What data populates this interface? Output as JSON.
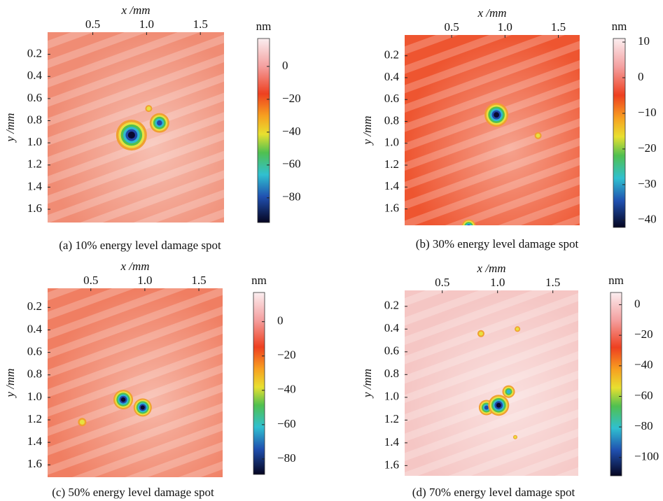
{
  "chart_data": [
    {
      "type": "heatmap",
      "x_label": "x /mm",
      "y_label": "y /mm",
      "colorbar_label": "nm",
      "caption": "(a) 10% energy level damage spot",
      "xlim": [
        0.08,
        1.72
      ],
      "xticks": [
        0.5,
        {
          "value": 1,
          "label": "1.0"
        },
        1.5
      ],
      "ylim": [
        0,
        1.72
      ],
      "yticks": [
        0.2,
        0.4,
        0.6,
        0.8,
        {
          "value": 1,
          "label": "1.0"
        },
        1.2,
        1.4,
        1.6
      ],
      "clim": [
        -95,
        17
      ],
      "cticks": [
        0,
        {
          "value": -20,
          "label": "−20"
        },
        {
          "value": -40,
          "label": "−40"
        },
        {
          "value": -60,
          "label": "−60"
        },
        {
          "value": -80,
          "label": "−80"
        }
      ]
    },
    {
      "type": "heatmap",
      "x_label": "x /mm",
      "y_label": "y /mm",
      "colorbar_label": "nm",
      "caption": "(b) 30% energy level damage spot",
      "xlim": [
        0.06,
        1.7
      ],
      "xticks": [
        0.5,
        {
          "value": 1,
          "label": "1.0"
        },
        1.5
      ],
      "ylim": [
        0.01,
        1.75
      ],
      "yticks": [
        0.2,
        0.4,
        0.6,
        0.8,
        {
          "value": 1,
          "label": "1.0"
        },
        1.2,
        1.4,
        1.6
      ],
      "clim": [
        -42,
        11
      ],
      "cticks": [
        10,
        0,
        {
          "value": -10,
          "label": "−10"
        },
        {
          "value": -20,
          "label": "−20"
        },
        {
          "value": -30,
          "label": "−30"
        },
        {
          "value": -40,
          "label": "−40"
        }
      ]
    },
    {
      "type": "heatmap",
      "x_label": "x /mm",
      "y_label": "y /mm",
      "colorbar_label": "nm",
      "caption": "(c) 50% energy level damage spot",
      "xlim": [
        0.1,
        1.72
      ],
      "xticks": [
        0.5,
        {
          "value": 1,
          "label": "1.0"
        },
        1.5
      ],
      "ylim": [
        0.03,
        1.71
      ],
      "yticks": [
        0.2,
        0.4,
        0.6,
        0.8,
        {
          "value": 1,
          "label": "1.0"
        },
        1.2,
        1.4,
        1.6
      ],
      "clim": [
        -89,
        17
      ],
      "cticks": [
        0,
        {
          "value": -20,
          "label": "−20"
        },
        {
          "value": -40,
          "label": "−40"
        },
        {
          "value": -60,
          "label": "−60"
        },
        {
          "value": -80,
          "label": "−80"
        }
      ]
    },
    {
      "type": "heatmap",
      "x_label": "x /mm",
      "y_label": "y /mm",
      "colorbar_label": "nm",
      "caption": "(d) 70% energy level damage spot",
      "xlim": [
        0.16,
        1.73
      ],
      "xticks": [
        0.5,
        {
          "value": 1,
          "label": "1.0"
        },
        1.5
      ],
      "ylim": [
        0.06,
        1.69
      ],
      "yticks": [
        0.2,
        0.4,
        0.6,
        0.8,
        {
          "value": 1,
          "label": "1.0"
        },
        1.2,
        1.4,
        1.6
      ],
      "clim": [
        -112,
        8
      ],
      "cticks": [
        0,
        {
          "value": -20,
          "label": "−20"
        },
        {
          "value": -40,
          "label": "−40"
        },
        {
          "value": -60,
          "label": "−60"
        },
        {
          "value": -80,
          "label": "−80"
        },
        {
          "value": -100,
          "label": "−100"
        }
      ]
    }
  ]
}
